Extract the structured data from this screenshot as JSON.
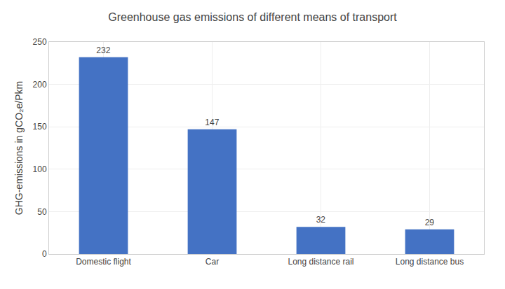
{
  "chart_data": {
    "type": "bar",
    "title": "Greenhouse gas emissions of different means of transport",
    "ylabel": "GHG-emissions in gCO₂e/Pkm",
    "categories": [
      "Domestic flight",
      "Car",
      "Long distance rail",
      "Long distance bus"
    ],
    "values": [
      232,
      147,
      32,
      29
    ],
    "color": "#4472c4",
    "ylim": [
      0,
      250
    ],
    "yticks": [
      0,
      50,
      100,
      150,
      200,
      250
    ],
    "grid": true,
    "data_labels": true
  }
}
